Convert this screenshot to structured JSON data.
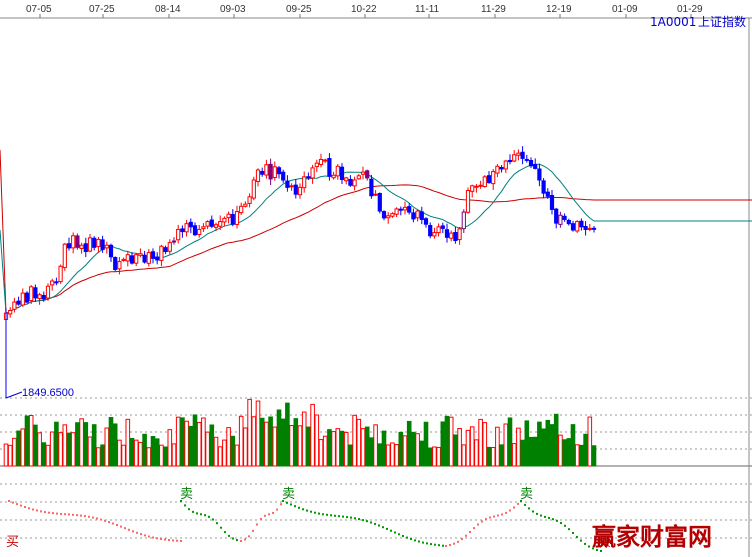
{
  "header": {
    "code": "1A0001",
    "name": "上证指数",
    "dates": [
      "07-05",
      "07-25",
      "08-14",
      "09-03",
      "09-25",
      "10-22",
      "11-11",
      "11-29",
      "12-19",
      "01-09",
      "01-29"
    ]
  },
  "low_label": "1849.6500",
  "signals": {
    "sell": "卖",
    "buy": "买"
  },
  "watermark": "赢家财富网",
  "colors": {
    "up": "#ff0000",
    "down": "#0000ff",
    "ma_short": "#008080",
    "ma_long": "#cc0000",
    "vol_up": "#ff0000",
    "vol_down": "#008000",
    "adjust": "#800080"
  },
  "chart_data": [
    {
      "type": "candlestick",
      "title": "1A0001 上证指数",
      "x": [
        "07-05",
        "07-25",
        "08-14",
        "09-03",
        "09-25",
        "10-22",
        "11-11",
        "11-29",
        "12-19",
        "01-09",
        "01-29"
      ],
      "min_label": "1849.6500",
      "closes": [
        2011,
        2016,
        2032,
        2028,
        2049,
        2032,
        2061,
        2040,
        2046,
        2038,
        2062,
        2072,
        2070,
        2100,
        2142,
        2135,
        2158,
        2136,
        2140,
        2128,
        2154,
        2136,
        2151,
        2132,
        2140,
        2118,
        2094,
        2109,
        2113,
        2122,
        2106,
        2122,
        2124,
        2108,
        2126,
        2115,
        2112,
        2138,
        2128,
        2145,
        2148,
        2170,
        2166,
        2181,
        2175,
        2160,
        2170,
        2175,
        2185,
        2176,
        2179,
        2185,
        2191,
        2199,
        2180,
        2204,
        2214,
        2218,
        2232,
        2264,
        2283,
        2275,
        2293,
        2266,
        2289,
        2276,
        2264,
        2250,
        2253,
        2237,
        2250,
        2270,
        2270,
        2287,
        2296,
        2303,
        2302,
        2271,
        2273,
        2290,
        2265,
        2268,
        2254,
        2264,
        2272,
        2279,
        2268,
        2234,
        2237,
        2205,
        2192,
        2196,
        2200,
        2209,
        2207,
        2212,
        2203,
        2190,
        2205,
        2189,
        2180,
        2158,
        2164,
        2175,
        2172,
        2155,
        2163,
        2149,
        2171,
        2203,
        2244,
        2253,
        2252,
        2254,
        2270,
        2259,
        2280,
        2290,
        2285,
        2300,
        2299,
        2312,
        2315,
        2305,
        2302,
        2291,
        2286,
        2264,
        2239,
        2233,
        2208,
        2182,
        2197,
        2189,
        2181,
        2169,
        2185,
        2175,
        2170,
        2172,
        2171
      ],
      "ma_short": "12-day moving average",
      "ma_long": "60-day moving average",
      "volume_panel": true,
      "signal_panel": {
        "sell": 3,
        "buy": 2
      }
    }
  ]
}
